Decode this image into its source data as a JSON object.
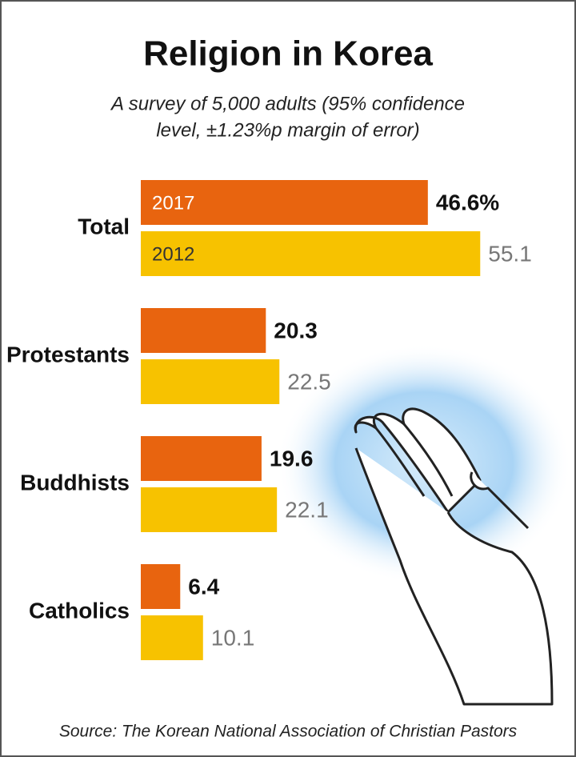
{
  "chart_data": {
    "type": "bar",
    "orientation": "horizontal",
    "title": "Religion in Korea",
    "subtitle": [
      "A survey of 5,000 adults (95% confidence",
      "level, ±1.23%p margin of error)"
    ],
    "categories": [
      "Total",
      "Protestants",
      "Buddhists",
      "Catholics"
    ],
    "series": [
      {
        "name": "2017",
        "color": "#e8640f",
        "values": [
          46.6,
          20.3,
          19.6,
          6.4
        ],
        "value_labels": [
          "46.6%",
          "20.3",
          "19.6",
          "6.4"
        ]
      },
      {
        "name": "2012",
        "color": "#f7c200",
        "values": [
          55.1,
          22.5,
          22.1,
          10.1
        ]
      }
    ],
    "source": "Source: The Korean National Association of Christian Pastors"
  }
}
